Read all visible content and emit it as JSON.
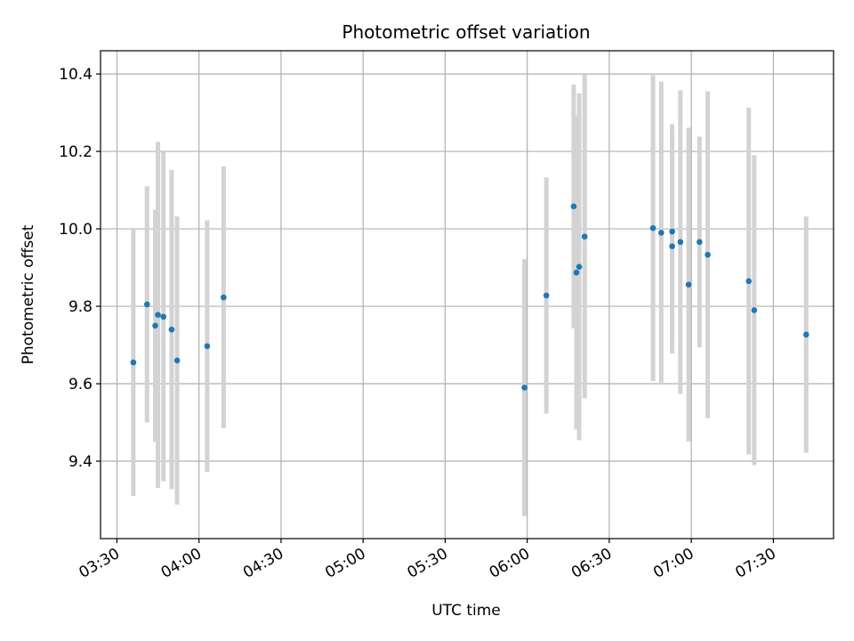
{
  "chart_data": {
    "type": "scatter",
    "title": "Photometric offset variation",
    "xlabel": "UTC time",
    "ylabel": "Photometric offset",
    "x_axis": "time",
    "xlim": [
      "03:24",
      "07:52"
    ],
    "ylim": [
      9.2,
      10.46
    ],
    "x_ticks": [
      "03:30",
      "04:00",
      "04:30",
      "05:00",
      "05:30",
      "06:00",
      "06:30",
      "07:00",
      "07:30"
    ],
    "y_ticks": [
      9.4,
      9.6,
      9.8,
      10.0,
      10.2,
      10.4
    ],
    "grid": true,
    "colors": {
      "point": "#1f77b4",
      "errorbar": "#d3d3d3",
      "grid": "#b0b0b0"
    },
    "series": [
      {
        "points": [
          {
            "x": "03:36",
            "y": 9.655,
            "err": 0.345
          },
          {
            "x": "03:41",
            "y": 9.805,
            "err": 0.305
          },
          {
            "x": "03:44",
            "y": 9.75,
            "err": 0.3
          },
          {
            "x": "03:45",
            "y": 9.778,
            "err": 0.447
          },
          {
            "x": "03:47",
            "y": 9.773,
            "err": 0.425
          },
          {
            "x": "03:50",
            "y": 9.74,
            "err": 0.412
          },
          {
            "x": "03:52",
            "y": 9.66,
            "err": 0.372
          },
          {
            "x": "04:03",
            "y": 9.697,
            "err": 0.325
          },
          {
            "x": "04:09",
            "y": 9.823,
            "err": 0.338
          },
          {
            "x": "05:59",
            "y": 9.59,
            "err": 0.332
          },
          {
            "x": "06:07",
            "y": 9.828,
            "err": 0.305
          },
          {
            "x": "06:17",
            "y": 10.058,
            "err": 0.315
          },
          {
            "x": "06:18",
            "y": 9.887,
            "err": 0.405
          },
          {
            "x": "06:19",
            "y": 9.902,
            "err": 0.448
          },
          {
            "x": "06:21",
            "y": 9.98,
            "err": 0.418
          },
          {
            "x": "06:46",
            "y": 10.002,
            "err": 0.395
          },
          {
            "x": "06:49",
            "y": 9.99,
            "err": 0.39
          },
          {
            "x": "06:53",
            "y": 9.993,
            "err": 0.277
          },
          {
            "x": "06:53",
            "y": 9.955,
            "err": 0.277
          },
          {
            "x": "06:56",
            "y": 9.966,
            "err": 0.392
          },
          {
            "x": "06:59",
            "y": 9.856,
            "err": 0.405
          },
          {
            "x": "07:03",
            "y": 9.966,
            "err": 0.272
          },
          {
            "x": "07:06",
            "y": 9.933,
            "err": 0.422
          },
          {
            "x": "07:21",
            "y": 9.865,
            "err": 0.448
          },
          {
            "x": "07:23",
            "y": 9.79,
            "err": 0.4
          },
          {
            "x": "07:42",
            "y": 9.727,
            "err": 0.305
          }
        ]
      }
    ]
  }
}
